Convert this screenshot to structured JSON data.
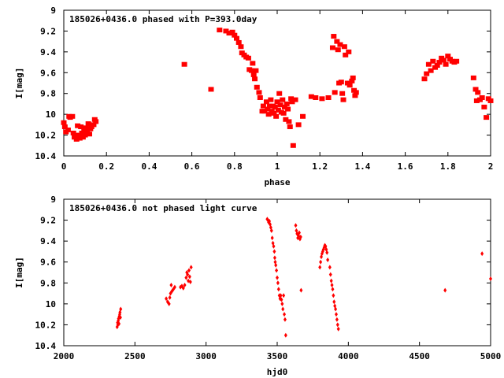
{
  "chart_data": [
    {
      "type": "scatter",
      "title": "185026+0436.0 phased with P=393.0day",
      "xlabel": "phase",
      "ylabel": "I[mag]",
      "xlim": [
        0,
        2
      ],
      "ylim": [
        10.4,
        9
      ],
      "y_inverted": true,
      "x_ticks": [
        "0",
        "0.2",
        "0.4",
        "0.6",
        "0.8",
        "1",
        "1.2",
        "1.4",
        "1.6",
        "1.8",
        "2"
      ],
      "y_ticks": [
        "9",
        "9.2",
        "9.4",
        "9.6",
        "9.8",
        "10",
        "10.2",
        "10.4"
      ],
      "marker": "star",
      "color": "#ff0000",
      "points": [
        [
          0.0,
          10.08
        ],
        [
          0.005,
          10.12
        ],
        [
          0.01,
          10.17
        ],
        [
          0.02,
          10.15
        ],
        [
          0.025,
          10.02
        ],
        [
          0.03,
          10.03
        ],
        [
          0.04,
          10.02
        ],
        [
          0.045,
          10.18
        ],
        [
          0.05,
          10.22
        ],
        [
          0.06,
          10.24
        ],
        [
          0.065,
          10.11
        ],
        [
          0.07,
          10.2
        ],
        [
          0.075,
          10.23
        ],
        [
          0.08,
          10.12
        ],
        [
          0.085,
          10.18
        ],
        [
          0.09,
          10.22
        ],
        [
          0.095,
          10.15
        ],
        [
          0.1,
          10.2
        ],
        [
          0.105,
          10.13
        ],
        [
          0.11,
          10.17
        ],
        [
          0.115,
          10.09
        ],
        [
          0.12,
          10.19
        ],
        [
          0.125,
          10.14
        ],
        [
          0.13,
          10.12
        ],
        [
          0.14,
          10.1
        ],
        [
          0.145,
          10.05
        ],
        [
          0.15,
          10.07
        ],
        [
          0.565,
          9.52
        ],
        [
          0.69,
          9.76
        ],
        [
          0.73,
          9.19
        ],
        [
          0.76,
          9.2
        ],
        [
          0.775,
          9.22
        ],
        [
          0.79,
          9.21
        ],
        [
          0.8,
          9.24
        ],
        [
          0.81,
          9.27
        ],
        [
          0.82,
          9.31
        ],
        [
          0.83,
          9.35
        ],
        [
          0.835,
          9.41
        ],
        [
          0.845,
          9.43
        ],
        [
          0.855,
          9.45
        ],
        [
          0.865,
          9.46
        ],
        [
          0.87,
          9.57
        ],
        [
          0.88,
          9.58
        ],
        [
          0.885,
          9.51
        ],
        [
          0.89,
          9.62
        ],
        [
          0.895,
          9.66
        ],
        [
          0.9,
          9.58
        ],
        [
          0.905,
          9.74
        ],
        [
          0.915,
          9.79
        ],
        [
          0.92,
          9.84
        ],
        [
          0.93,
          9.97
        ],
        [
          0.935,
          9.92
        ],
        [
          0.94,
          9.97
        ],
        [
          0.95,
          9.88
        ],
        [
          0.955,
          9.95
        ],
        [
          0.96,
          10.0
        ],
        [
          0.965,
          9.92
        ],
        [
          0.97,
          9.86
        ],
        [
          0.975,
          9.97
        ],
        [
          0.98,
          9.92
        ],
        [
          0.985,
          9.99
        ],
        [
          0.99,
          9.93
        ],
        [
          0.995,
          10.02
        ],
        [
          1.0,
          9.88
        ],
        [
          1.005,
          9.96
        ],
        [
          1.01,
          9.8
        ],
        [
          1.015,
          9.91
        ],
        [
          1.02,
          9.98
        ],
        [
          1.025,
          9.86
        ],
        [
          1.03,
          9.99
        ],
        [
          1.035,
          9.93
        ],
        [
          1.04,
          10.05
        ],
        [
          1.045,
          9.9
        ],
        [
          1.05,
          9.95
        ],
        [
          1.055,
          10.07
        ],
        [
          1.06,
          10.12
        ],
        [
          1.065,
          9.85
        ],
        [
          1.07,
          9.88
        ],
        [
          1.075,
          10.3
        ],
        [
          1.085,
          9.86
        ],
        [
          1.1,
          10.1
        ],
        [
          1.12,
          10.02
        ],
        [
          1.16,
          9.83
        ],
        [
          1.18,
          9.84
        ],
        [
          1.21,
          9.85
        ],
        [
          1.24,
          9.84
        ],
        [
          1.26,
          9.36
        ],
        [
          1.265,
          9.25
        ],
        [
          1.27,
          9.79
        ],
        [
          1.28,
          9.3
        ],
        [
          1.285,
          9.38
        ],
        [
          1.29,
          9.7
        ],
        [
          1.295,
          9.33
        ],
        [
          1.3,
          9.69
        ],
        [
          1.305,
          9.8
        ],
        [
          1.31,
          9.86
        ],
        [
          1.315,
          9.35
        ],
        [
          1.32,
          9.43
        ],
        [
          1.33,
          9.7
        ],
        [
          1.335,
          9.4
        ],
        [
          1.34,
          9.72
        ],
        [
          1.35,
          9.68
        ],
        [
          1.355,
          9.65
        ],
        [
          1.36,
          9.77
        ],
        [
          1.365,
          9.82
        ],
        [
          1.37,
          9.79
        ],
        [
          1.69,
          9.66
        ],
        [
          1.7,
          9.61
        ],
        [
          1.71,
          9.52
        ],
        [
          1.72,
          9.58
        ],
        [
          1.73,
          9.49
        ],
        [
          1.74,
          9.55
        ],
        [
          1.75,
          9.53
        ],
        [
          1.76,
          9.5
        ],
        [
          1.77,
          9.46
        ],
        [
          1.78,
          9.48
        ],
        [
          1.79,
          9.52
        ],
        [
          1.8,
          9.44
        ],
        [
          1.81,
          9.47
        ],
        [
          1.82,
          9.49
        ],
        [
          1.83,
          9.5
        ],
        [
          1.84,
          9.49
        ],
        [
          1.92,
          9.65
        ],
        [
          1.93,
          9.76
        ],
        [
          1.935,
          9.87
        ],
        [
          1.94,
          9.79
        ],
        [
          1.95,
          9.86
        ],
        [
          1.96,
          9.84
        ],
        [
          1.97,
          9.93
        ],
        [
          1.98,
          10.03
        ],
        [
          1.99,
          9.85
        ],
        [
          2.0,
          9.87
        ]
      ]
    },
    {
      "type": "scatter",
      "title": "185026+0436.0 not phased light curve",
      "xlabel": "hjd0",
      "ylabel": "I[mag]",
      "xlim": [
        2000,
        5000
      ],
      "ylim": [
        10.4,
        9
      ],
      "y_inverted": true,
      "x_ticks": [
        "2000",
        "2500",
        "3000",
        "3500",
        "4000",
        "4500",
        "5000"
      ],
      "y_ticks": [
        "9",
        "9.2",
        "9.4",
        "9.6",
        "9.8",
        "10",
        "10.2",
        "10.4"
      ],
      "marker": "diamond",
      "color": "#ff0000",
      "points": [
        [
          2375,
          10.22
        ],
        [
          2378,
          10.18
        ],
        [
          2380,
          10.2
        ],
        [
          2383,
          10.16
        ],
        [
          2385,
          10.14
        ],
        [
          2388,
          10.19
        ],
        [
          2390,
          10.12
        ],
        [
          2393,
          10.1
        ],
        [
          2395,
          10.08
        ],
        [
          2398,
          10.13
        ],
        [
          2400,
          10.05
        ],
        [
          2720,
          9.95
        ],
        [
          2730,
          9.98
        ],
        [
          2740,
          10.0
        ],
        [
          2745,
          9.94
        ],
        [
          2750,
          9.9
        ],
        [
          2755,
          9.82
        ],
        [
          2760,
          9.88
        ],
        [
          2770,
          9.86
        ],
        [
          2780,
          9.84
        ],
        [
          2820,
          9.84
        ],
        [
          2830,
          9.83
        ],
        [
          2840,
          9.85
        ],
        [
          2850,
          9.82
        ],
        [
          2860,
          9.75
        ],
        [
          2865,
          9.7
        ],
        [
          2870,
          9.72
        ],
        [
          2875,
          9.78
        ],
        [
          2880,
          9.68
        ],
        [
          2885,
          9.74
        ],
        [
          2890,
          9.79
        ],
        [
          2895,
          9.65
        ],
        [
          3430,
          9.19
        ],
        [
          3435,
          9.2
        ],
        [
          3440,
          9.22
        ],
        [
          3445,
          9.21
        ],
        [
          3450,
          9.24
        ],
        [
          3455,
          9.27
        ],
        [
          3460,
          9.3
        ],
        [
          3465,
          9.37
        ],
        [
          3470,
          9.42
        ],
        [
          3475,
          9.45
        ],
        [
          3480,
          9.5
        ],
        [
          3483,
          9.56
        ],
        [
          3486,
          9.6
        ],
        [
          3490,
          9.63
        ],
        [
          3495,
          9.68
        ],
        [
          3500,
          9.75
        ],
        [
          3505,
          9.8
        ],
        [
          3510,
          9.86
        ],
        [
          3515,
          9.92
        ],
        [
          3520,
          9.95
        ],
        [
          3525,
          9.92
        ],
        [
          3530,
          9.96
        ],
        [
          3535,
          10.0
        ],
        [
          3540,
          10.05
        ],
        [
          3545,
          9.92
        ],
        [
          3550,
          10.1
        ],
        [
          3555,
          10.15
        ],
        [
          3560,
          10.3
        ],
        [
          3630,
          9.25
        ],
        [
          3635,
          9.3
        ],
        [
          3640,
          9.33
        ],
        [
          3645,
          9.37
        ],
        [
          3650,
          9.35
        ],
        [
          3655,
          9.32
        ],
        [
          3660,
          9.38
        ],
        [
          3665,
          9.36
        ],
        [
          3668,
          9.87
        ],
        [
          3800,
          9.65
        ],
        [
          3805,
          9.6
        ],
        [
          3810,
          9.55
        ],
        [
          3815,
          9.52
        ],
        [
          3820,
          9.5
        ],
        [
          3825,
          9.48
        ],
        [
          3830,
          9.46
        ],
        [
          3835,
          9.44
        ],
        [
          3840,
          9.45
        ],
        [
          3845,
          9.48
        ],
        [
          3850,
          9.51
        ],
        [
          3855,
          9.58
        ],
        [
          3870,
          9.65
        ],
        [
          3875,
          9.72
        ],
        [
          3880,
          9.78
        ],
        [
          3885,
          9.82
        ],
        [
          3890,
          9.86
        ],
        [
          3895,
          9.92
        ],
        [
          3900,
          9.98
        ],
        [
          3905,
          10.02
        ],
        [
          3910,
          10.05
        ],
        [
          3915,
          10.1
        ],
        [
          3920,
          10.15
        ],
        [
          3925,
          10.2
        ],
        [
          3930,
          10.24
        ],
        [
          4680,
          9.87
        ],
        [
          4940,
          9.52
        ],
        [
          5000,
          9.76
        ]
      ]
    }
  ]
}
